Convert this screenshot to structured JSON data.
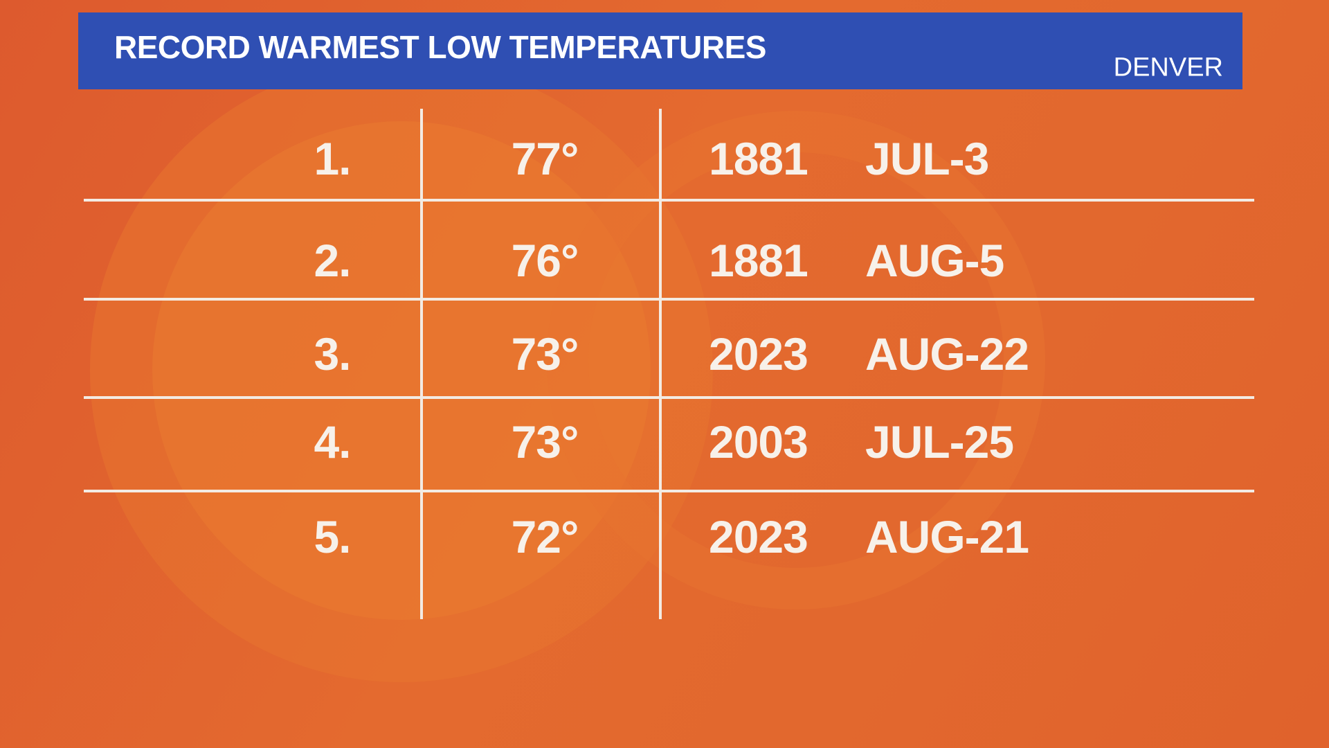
{
  "header": {
    "title": "RECORD WARMEST LOW TEMPERATURES",
    "location": "DENVER"
  },
  "table": {
    "rows": [
      [
        "1.",
        "77°",
        "1881",
        "JUL-3"
      ],
      [
        "2.",
        "76°",
        "1881",
        "AUG-5"
      ],
      [
        "3.",
        "73°",
        "2023",
        "AUG-22"
      ],
      [
        "4.",
        "73°",
        "2003",
        "JUL-25"
      ],
      [
        "5.",
        "72°",
        "2023",
        "AUG-21"
      ]
    ]
  }
}
